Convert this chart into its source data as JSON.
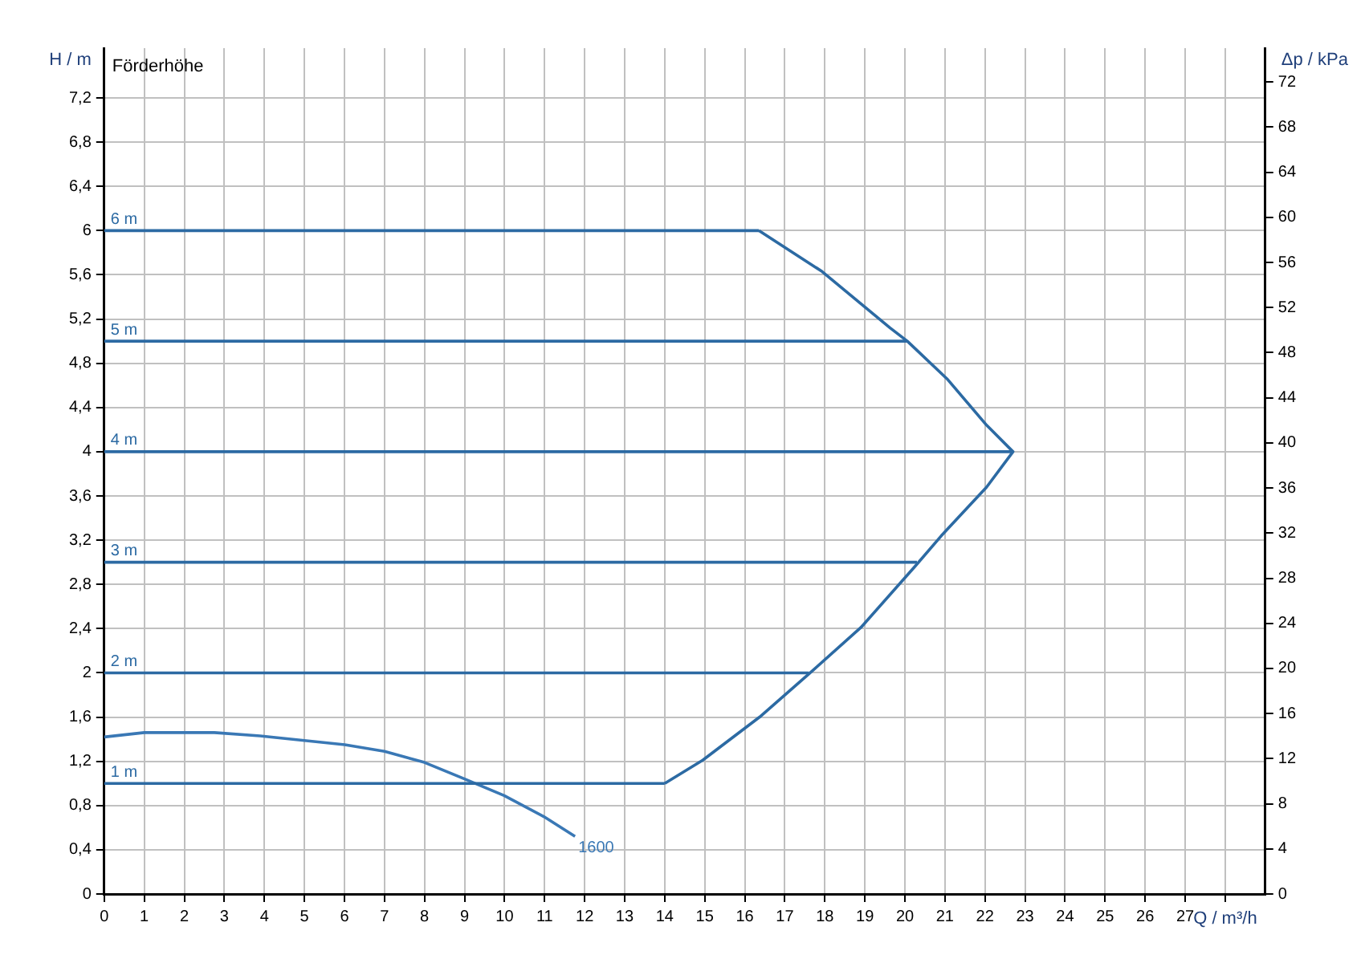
{
  "chart_data": {
    "type": "line",
    "title": "Förderhöhe",
    "xlabel": "Q / m³/h",
    "ylabel": "H / m",
    "y2label": "Δp / kPa",
    "xlim": [
      0,
      29
    ],
    "xticks": [
      0,
      1,
      2,
      3,
      4,
      5,
      6,
      7,
      8,
      9,
      10,
      11,
      12,
      13,
      14,
      15,
      16,
      17,
      18,
      19,
      20,
      21,
      22,
      23,
      24,
      25,
      26,
      27,
      {
        "value": 28,
        "label": null
      }
    ],
    "ylim": [
      0,
      7.65
    ],
    "yticks": [
      0,
      {
        "value": 0.4,
        "label": "0,4"
      },
      {
        "value": 0.8,
        "label": "0,8"
      },
      {
        "value": 1.2,
        "label": "1,2"
      },
      {
        "value": 1.6,
        "label": "1,6"
      },
      2,
      {
        "value": 2.4,
        "label": "2,4"
      },
      {
        "value": 2.8,
        "label": "2,8"
      },
      {
        "value": 3.2,
        "label": "3,2"
      },
      {
        "value": 3.6,
        "label": "3,6"
      },
      4,
      {
        "value": 4.4,
        "label": "4,4"
      },
      {
        "value": 4.8,
        "label": "4,8"
      },
      {
        "value": 5.2,
        "label": "5,2"
      },
      {
        "value": 5.6,
        "label": "5,6"
      },
      6,
      {
        "value": 6.4,
        "label": "6,4"
      },
      {
        "value": 6.8,
        "label": "6,8"
      },
      {
        "value": 7.2,
        "label": "7,2"
      }
    ],
    "y2lim": [
      0,
      75
    ],
    "y2ticks": [
      0,
      4,
      8,
      12,
      16,
      20,
      24,
      28,
      32,
      36,
      40,
      44,
      48,
      52,
      56,
      60,
      64,
      68,
      72
    ],
    "grid": true,
    "legend": false,
    "marker": "none",
    "line_style": "solid",
    "series": [
      {
        "name": "6 m",
        "color": "#2c6aa3",
        "x": [
          0,
          16.35
        ],
        "values": [
          6,
          6
        ]
      },
      {
        "name": "1 m",
        "color": "#2c6aa3",
        "x": [
          0,
          14
        ],
        "values": [
          1,
          1
        ]
      },
      {
        "color": "#2c6aa3",
        "x": [
          14,
          14.95,
          16.37,
          17.57,
          18.9,
          20.27,
          20.91,
          22.04,
          22.7,
          22.04,
          21.05,
          20.06,
          19.63,
          17.93,
          16.35
        ],
        "values": [
          1,
          1.21,
          1.6,
          1.98,
          2.41,
          2.97,
          3.24,
          3.68,
          4,
          4.24,
          4.66,
          5,
          5.12,
          5.63,
          6
        ]
      },
      {
        "name": "5 m",
        "color": "#2c6aa3",
        "x": [
          0,
          20.06
        ],
        "values": [
          5,
          5
        ]
      },
      {
        "name": "4 m",
        "color": "#2c6aa3",
        "x": [
          0,
          22.7
        ],
        "values": [
          4,
          4
        ]
      },
      {
        "name": "3 m",
        "color": "#2c6aa3",
        "x": [
          0,
          20.3
        ],
        "values": [
          3,
          3
        ]
      },
      {
        "name": "2 m",
        "color": "#2c6aa3",
        "x": [
          0,
          17.6
        ],
        "values": [
          2,
          2
        ]
      },
      {
        "name": "1600",
        "color": "#3a78b5",
        "x": [
          0,
          1,
          2.75,
          3.89,
          4.95,
          6.01,
          7,
          8,
          9,
          9.99,
          10.98,
          11.76
        ],
        "values": [
          1.42,
          1.46,
          1.46,
          1.43,
          1.39,
          1.35,
          1.29,
          1.19,
          1.04,
          0.89,
          0.7,
          0.52
        ]
      }
    ]
  }
}
